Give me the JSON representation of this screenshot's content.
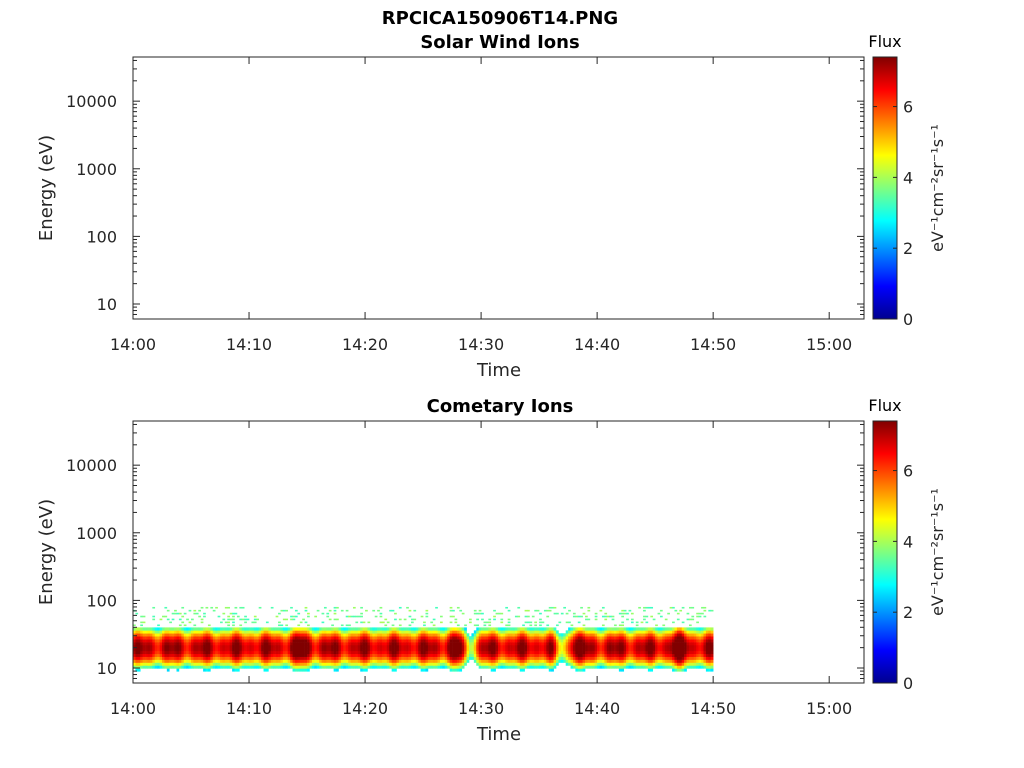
{
  "figure_title": "RPCICA150906T14.PNG",
  "colorbar": {
    "label": "Flux",
    "units_label": "eV⁻¹cm⁻²sr⁻¹s⁻¹",
    "range": [
      0,
      7.4
    ],
    "ticks": [
      0,
      2,
      4,
      6
    ],
    "colormap": "jet"
  },
  "chart_data": [
    {
      "type": "heatmap",
      "title": "Solar Wind Ions",
      "xlabel": "Time",
      "ylabel": "Energy (eV)",
      "x_ticks": [
        "14:00",
        "14:10",
        "14:20",
        "14:30",
        "14:40",
        "14:50",
        "15:00"
      ],
      "xlim_minutes": [
        0,
        63
      ],
      "y_scale": "log",
      "y_ticks": [
        10,
        100,
        1000,
        10000
      ],
      "y_tick_labels": [
        "10",
        "100",
        "1000",
        "10000"
      ],
      "ylim": [
        6,
        45000
      ],
      "data_present": false
    },
    {
      "type": "heatmap",
      "title": "Cometary Ions",
      "xlabel": "Time",
      "ylabel": "Energy (eV)",
      "x_ticks": [
        "14:00",
        "14:10",
        "14:20",
        "14:30",
        "14:40",
        "14:50",
        "15:00"
      ],
      "xlim_minutes": [
        0,
        63
      ],
      "y_scale": "log",
      "y_ticks": [
        10,
        100,
        1000,
        10000
      ],
      "y_tick_labels": [
        "10",
        "100",
        "1000",
        "10000"
      ],
      "ylim": [
        6,
        45000
      ],
      "data_present": true,
      "data_time_range_minutes": [
        0,
        50
      ],
      "data_energy_range_eV": [
        6,
        80
      ],
      "peak_energy_eV": 20,
      "peak_flux": 7,
      "enhancements": [
        {
          "time_minutes": 14.5,
          "peak_flux": 7.2
        },
        {
          "time_minutes": 28,
          "peak_flux": 7.3
        },
        {
          "time_minutes": 38,
          "peak_flux": 7.2
        },
        {
          "time_minutes": 47,
          "peak_flux": 7.4
        }
      ],
      "depletions": [
        {
          "time_minutes": 29,
          "min_flux": 3.5
        },
        {
          "time_minutes": 37,
          "min_flux": 4
        }
      ]
    }
  ]
}
